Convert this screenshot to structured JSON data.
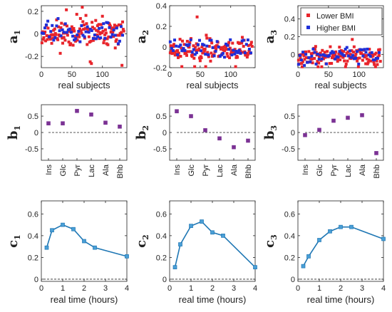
{
  "colors": {
    "lower": "#e8242b",
    "higher": "#1f2fd8",
    "loading": "#7b3294",
    "line": "#1f77b4",
    "marker": "#4a9fd6"
  },
  "legend": {
    "lower": "Lower BMI",
    "higher": "Higher BMI"
  },
  "chart_data": [
    {
      "id": "a1",
      "type": "scatter",
      "ylabel": "a",
      "ysub": "1",
      "xlabel": "real subjects",
      "xlim": [
        0,
        140
      ],
      "ylim": [
        -0.3,
        0.25
      ],
      "xticks": [
        0,
        50,
        100
      ],
      "yticks": [
        -0.2,
        0,
        0.2
      ],
      "yticklabels": [
        "-0.2",
        "0",
        "0.2"
      ],
      "seed": 11,
      "center": 0.0,
      "spread": 0.09
    },
    {
      "id": "a2",
      "type": "scatter",
      "ylabel": "a",
      "ysub": "2",
      "xlabel": "real subjects",
      "xlim": [
        0,
        140
      ],
      "ylim": [
        -0.2,
        0.4
      ],
      "xticks": [
        0,
        50,
        100
      ],
      "yticks": [
        -0.2,
        0,
        0.2,
        0.4
      ],
      "yticklabels": [
        "-0.2",
        "0",
        "0.2",
        "0.4"
      ],
      "seed": 23,
      "center": -0.02,
      "spread": 0.08
    },
    {
      "id": "a3",
      "type": "scatter",
      "ylabel": "a",
      "ysub": "3",
      "xlabel": "real subjects",
      "xlim": [
        0,
        140
      ],
      "ylim": [
        -0.15,
        0.55
      ],
      "xticks": [
        0,
        50,
        100
      ],
      "yticks": [
        0,
        0.2,
        0.4
      ],
      "yticklabels": [
        "0",
        "0.2",
        "0.4"
      ],
      "seed": 37,
      "center": -0.02,
      "spread": 0.07,
      "legend": true
    },
    {
      "id": "b1",
      "type": "scatter",
      "ylabel": "b",
      "ysub": "1",
      "categories": [
        "Ins",
        "Glc",
        "Pyr",
        "Lac",
        "Ala",
        "Bhb"
      ],
      "values": [
        0.28,
        0.28,
        0.66,
        0.55,
        0.3,
        0.18
      ],
      "ylim": [
        -0.85,
        0.85
      ],
      "yticks": [
        -0.5,
        0,
        0.5
      ],
      "yticklabels": [
        "-0.5",
        "0",
        "0.5"
      ]
    },
    {
      "id": "b2",
      "type": "scatter",
      "ylabel": "b",
      "ysub": "2",
      "categories": [
        "Ins",
        "Glc",
        "Pyr",
        "Lac",
        "Ala",
        "Bhb"
      ],
      "values": [
        0.65,
        0.5,
        0.07,
        -0.18,
        -0.45,
        -0.25
      ],
      "ylim": [
        -0.85,
        0.85
      ],
      "yticks": [
        -0.5,
        0,
        0.5
      ],
      "yticklabels": [
        "-0.5",
        "0",
        "0.5"
      ]
    },
    {
      "id": "b3",
      "type": "scatter",
      "ylabel": "b",
      "ysub": "3",
      "categories": [
        "Ins",
        "Glc",
        "Pyr",
        "Lac",
        "Ala",
        "Bhb"
      ],
      "values": [
        -0.08,
        0.08,
        0.36,
        0.45,
        0.53,
        -0.63
      ],
      "ylim": [
        -0.85,
        0.85
      ],
      "yticks": [
        -0.5,
        0,
        0.5
      ],
      "yticklabels": [
        "-0.5",
        "0",
        "0.5"
      ]
    },
    {
      "id": "c1",
      "type": "line",
      "ylabel": "c",
      "ysub": "1",
      "xlabel": "real time (hours)",
      "x": [
        0.25,
        0.5,
        1,
        1.5,
        2,
        2.5,
        4
      ],
      "values": [
        0.29,
        0.45,
        0.5,
        0.46,
        0.35,
        0.29,
        0.21
      ],
      "xlim": [
        0,
        4
      ],
      "ylim": [
        -0.02,
        0.72
      ],
      "xticks": [
        0,
        1,
        2,
        3,
        4
      ],
      "yticks": [
        0,
        0.2,
        0.4,
        0.6
      ],
      "yticklabels": [
        "0",
        "0.2",
        "0.4",
        "0.6"
      ]
    },
    {
      "id": "c2",
      "type": "line",
      "ylabel": "c",
      "ysub": "2",
      "xlabel": "real time (hours)",
      "x": [
        0.25,
        0.5,
        1,
        1.5,
        2,
        2.5,
        4
      ],
      "values": [
        0.11,
        0.32,
        0.49,
        0.53,
        0.43,
        0.4,
        0.11
      ],
      "xlim": [
        0,
        4
      ],
      "ylim": [
        -0.02,
        0.72
      ],
      "xticks": [
        0,
        1,
        2,
        3,
        4
      ],
      "yticks": [
        0,
        0.2,
        0.4,
        0.6
      ],
      "yticklabels": [
        "0",
        "0.2",
        "0.4",
        "0.6"
      ]
    },
    {
      "id": "c3",
      "type": "line",
      "ylabel": "c",
      "ysub": "3",
      "xlabel": "real time (hours)",
      "x": [
        0.25,
        0.5,
        1,
        1.5,
        2,
        2.5,
        4
      ],
      "values": [
        0.12,
        0.21,
        0.36,
        0.44,
        0.48,
        0.48,
        0.37
      ],
      "xlim": [
        0,
        4
      ],
      "ylim": [
        -0.02,
        0.72
      ],
      "xticks": [
        0,
        1,
        2,
        3,
        4
      ],
      "yticks": [
        0,
        0.2,
        0.4,
        0.6
      ],
      "yticklabels": [
        "0",
        "0.2",
        "0.4",
        "0.6"
      ]
    }
  ]
}
